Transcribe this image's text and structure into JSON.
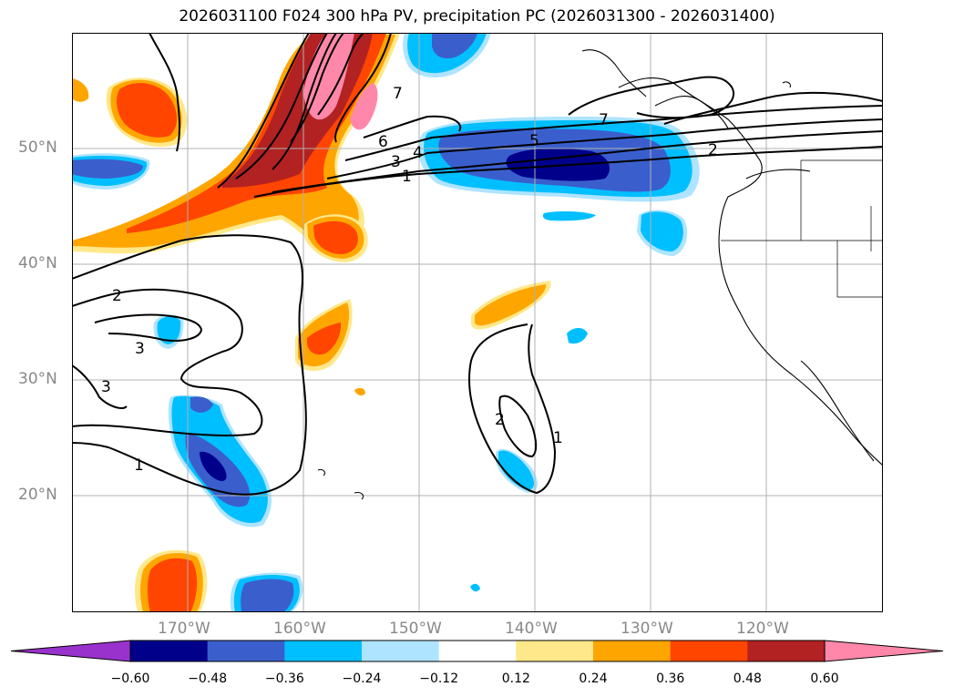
{
  "title": "2026031100 F024 300 hPa PV, precipitation PC (2026031300 - 2026031400)",
  "map": {
    "lon_labels": [
      "170°W",
      "160°W",
      "150°W",
      "140°W",
      "130°W",
      "120°W"
    ],
    "lat_labels": [
      "50°N",
      "40°N",
      "30°N",
      "20°N"
    ],
    "contour_labels": [
      "7",
      "6",
      "4",
      "3",
      "1",
      "5",
      "7",
      "2",
      "3",
      "3",
      "1",
      "2",
      "1",
      "2"
    ]
  },
  "colorbar": {
    "ticks": [
      "−0.60",
      "−0.48",
      "−0.36",
      "−0.24",
      "−0.12",
      "0.12",
      "0.24",
      "0.36",
      "0.48",
      "0.60"
    ],
    "colors": [
      "#9932cc",
      "#00008b",
      "#3a5fcd",
      "#00bfff",
      "#aee4ff",
      "#ffffff",
      "#ffe88a",
      "#ffa500",
      "#ff4500",
      "#b22222",
      "#ff88aa"
    ]
  }
}
